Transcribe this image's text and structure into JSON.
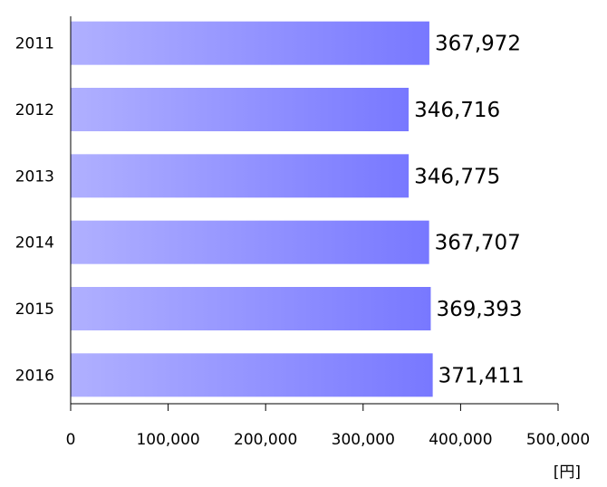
{
  "chart_data": {
    "type": "bar",
    "orientation": "horizontal",
    "categories": [
      "2011",
      "2012",
      "2013",
      "2014",
      "2015",
      "2016"
    ],
    "values": [
      367972,
      346716,
      346775,
      367707,
      369393,
      371411
    ],
    "value_labels": [
      "367,972",
      "346,716",
      "346,775",
      "367,707",
      "369,393",
      "371,411"
    ],
    "xlim": [
      0,
      500000
    ],
    "x_ticks": [
      0,
      100000,
      200000,
      300000,
      400000,
      500000
    ],
    "x_tick_labels": [
      "0",
      "100,000",
      "200,000",
      "300,000",
      "400,000",
      "500,000"
    ],
    "unit": "[円]",
    "grid": false,
    "legend": "none",
    "colors": {
      "bar_start": "#b0b0ff",
      "bar_end": "#7878ff",
      "axis": "#000000"
    }
  }
}
